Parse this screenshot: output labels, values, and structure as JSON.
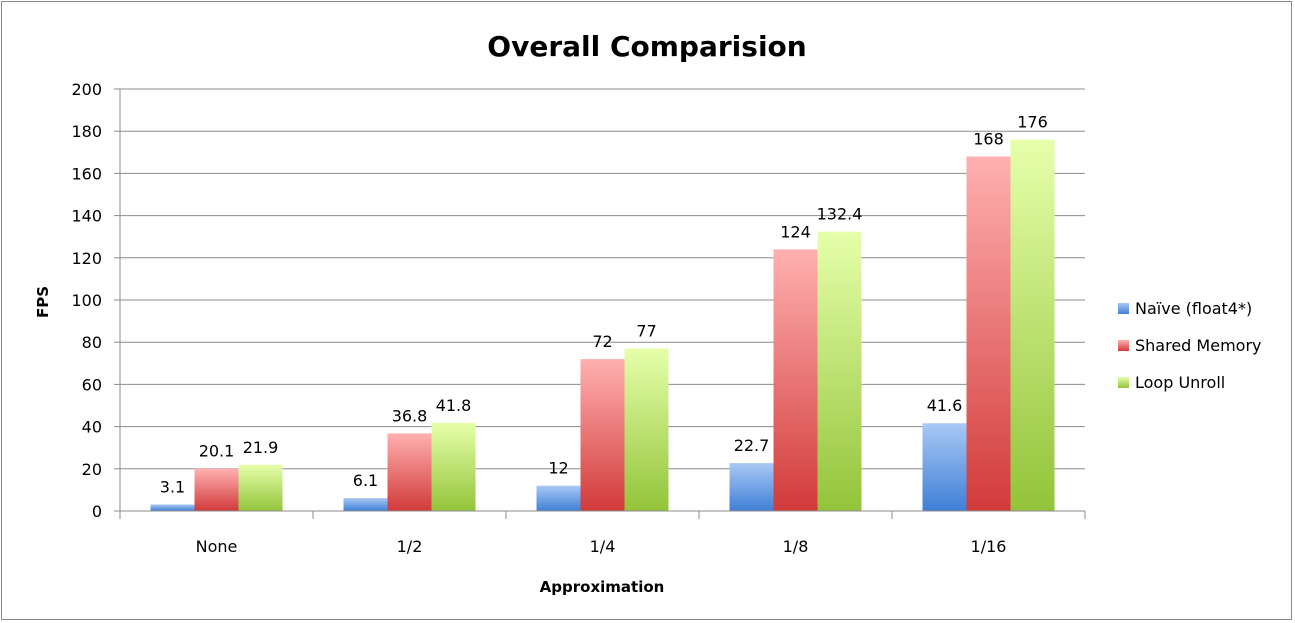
{
  "chart_data": {
    "type": "bar",
    "title": "Overall Comparision",
    "xlabel": "Approximation",
    "ylabel": "FPS",
    "categories": [
      "None",
      "1/2",
      "1/4",
      "1/8",
      "1/16"
    ],
    "series": [
      {
        "name": "Naïve (float4*)",
        "values": [
          3.1,
          6.1,
          12,
          22.7,
          41.6
        ],
        "labels": [
          "3.1",
          "6.1",
          "12",
          "22.7",
          "41.6"
        ],
        "color_light": "#a9c8f5",
        "color_dark": "#3f7fd6"
      },
      {
        "name": "Shared Memory",
        "values": [
          20.1,
          36.8,
          72,
          124,
          168
        ],
        "labels": [
          "20.1",
          "36.8",
          "72",
          "124",
          "168"
        ],
        "color_light": "#ffb0b0",
        "color_dark": "#d23a3a"
      },
      {
        "name": "Loop Unroll",
        "values": [
          21.9,
          41.8,
          77,
          132.4,
          176
        ],
        "labels": [
          "21.9",
          "41.8",
          "77",
          "132.4",
          "176"
        ],
        "color_light": "#e6ffaa",
        "color_dark": "#93c43a"
      }
    ],
    "ylim": [
      0,
      200
    ],
    "yticks": [
      0,
      20,
      40,
      60,
      80,
      100,
      120,
      140,
      160,
      180,
      200
    ],
    "grid": true,
    "legend_position": "right"
  }
}
